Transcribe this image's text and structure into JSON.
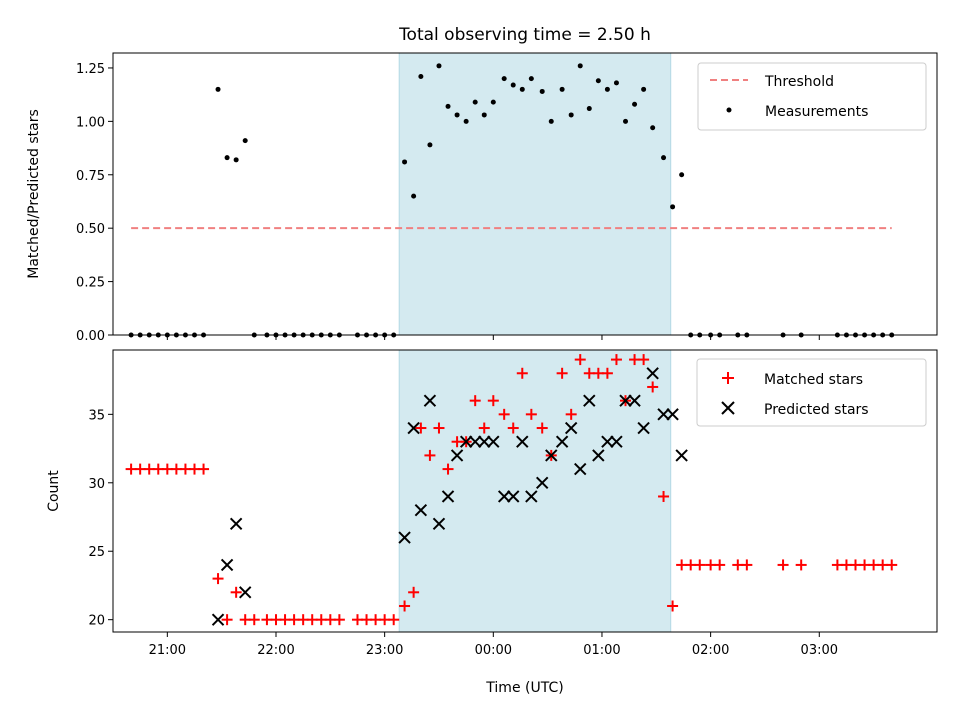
{
  "figure": {
    "title": "Total observing time = 2.50 h"
  },
  "chart_data": [
    {
      "type": "scatter",
      "ylabel": "Matched/Predicted stars",
      "xlabel": "",
      "xlim": [
        "20:30",
        "04:05"
      ],
      "ylim": [
        0,
        1.32
      ],
      "yticks": [
        "0.00",
        "0.25",
        "0.50",
        "0.75",
        "1.00",
        "1.25"
      ],
      "shaded_span": [
        "23:08",
        "01:38"
      ],
      "shade_color": "#d4eaf0",
      "legend_position": "top-right",
      "threshold": {
        "name": "Threshold",
        "y": 0.5,
        "x_range": [
          "20:40",
          "03:40"
        ],
        "color": "#f08080"
      },
      "series": [
        {
          "name": "Measurements",
          "color": "#000000",
          "points": [
            [
              "20:40",
              0
            ],
            [
              "20:45",
              0
            ],
            [
              "20:50",
              0
            ],
            [
              "20:55",
              0
            ],
            [
              "21:00",
              0
            ],
            [
              "21:05",
              0
            ],
            [
              "21:10",
              0
            ],
            [
              "21:15",
              0
            ],
            [
              "21:20",
              0
            ],
            [
              "21:28",
              1.15
            ],
            [
              "21:33",
              0.83
            ],
            [
              "21:38",
              0.82
            ],
            [
              "21:43",
              0.91
            ],
            [
              "21:48",
              0
            ],
            [
              "21:55",
              0
            ],
            [
              "22:00",
              0
            ],
            [
              "22:05",
              0
            ],
            [
              "22:10",
              0
            ],
            [
              "22:15",
              0
            ],
            [
              "22:20",
              0
            ],
            [
              "22:25",
              0
            ],
            [
              "22:30",
              0
            ],
            [
              "22:35",
              0
            ],
            [
              "22:45",
              0
            ],
            [
              "22:50",
              0
            ],
            [
              "22:55",
              0
            ],
            [
              "23:00",
              0
            ],
            [
              "23:05",
              0
            ],
            [
              "23:11",
              0.81
            ],
            [
              "23:16",
              0.65
            ],
            [
              "23:20",
              1.21
            ],
            [
              "23:25",
              0.89
            ],
            [
              "23:30",
              1.26
            ],
            [
              "23:35",
              1.07
            ],
            [
              "23:40",
              1.03
            ],
            [
              "23:45",
              1.0
            ],
            [
              "23:50",
              1.09
            ],
            [
              "23:55",
              1.03
            ],
            [
              "00:00",
              1.09
            ],
            [
              "00:06",
              1.2
            ],
            [
              "00:11",
              1.17
            ],
            [
              "00:16",
              1.15
            ],
            [
              "00:21",
              1.2
            ],
            [
              "00:27",
              1.14
            ],
            [
              "00:32",
              1.0
            ],
            [
              "00:38",
              1.15
            ],
            [
              "00:43",
              1.03
            ],
            [
              "00:48",
              1.26
            ],
            [
              "00:53",
              1.06
            ],
            [
              "00:58",
              1.19
            ],
            [
              "01:03",
              1.15
            ],
            [
              "01:08",
              1.18
            ],
            [
              "01:13",
              1.0
            ],
            [
              "01:18",
              1.08
            ],
            [
              "01:23",
              1.15
            ],
            [
              "01:28",
              0.97
            ],
            [
              "01:34",
              0.83
            ],
            [
              "01:39",
              0.6
            ],
            [
              "01:44",
              0.75
            ],
            [
              "01:49",
              0
            ],
            [
              "01:54",
              0
            ],
            [
              "02:00",
              0
            ],
            [
              "02:05",
              0
            ],
            [
              "02:15",
              0
            ],
            [
              "02:20",
              0
            ],
            [
              "02:40",
              0
            ],
            [
              "02:50",
              0
            ],
            [
              "03:10",
              0
            ],
            [
              "03:15",
              0
            ],
            [
              "03:20",
              0
            ],
            [
              "03:25",
              0
            ],
            [
              "03:30",
              0
            ],
            [
              "03:35",
              0
            ],
            [
              "03:40",
              0
            ]
          ]
        }
      ]
    },
    {
      "type": "scatter",
      "xlabel": "Time (UTC)",
      "ylabel": "Count",
      "xlim": [
        "20:30",
        "04:05"
      ],
      "ylim": [
        19.1,
        39.7
      ],
      "xticks": [
        "21:00",
        "22:00",
        "23:00",
        "00:00",
        "01:00",
        "02:00",
        "03:00"
      ],
      "yticks": [
        "20",
        "25",
        "30",
        "35"
      ],
      "shaded_span": [
        "23:08",
        "01:38"
      ],
      "legend_position": "top-right",
      "series": [
        {
          "name": "Matched stars",
          "marker": "plus",
          "color": "#ff0000",
          "points": [
            [
              "20:40",
              31
            ],
            [
              "20:45",
              31
            ],
            [
              "20:50",
              31
            ],
            [
              "20:55",
              31
            ],
            [
              "21:00",
              31
            ],
            [
              "21:05",
              31
            ],
            [
              "21:10",
              31
            ],
            [
              "21:15",
              31
            ],
            [
              "21:20",
              31
            ],
            [
              "21:28",
              23
            ],
            [
              "21:33",
              20
            ],
            [
              "21:38",
              22
            ],
            [
              "21:43",
              20
            ],
            [
              "21:48",
              20
            ],
            [
              "21:55",
              20
            ],
            [
              "22:00",
              20
            ],
            [
              "22:05",
              20
            ],
            [
              "22:10",
              20
            ],
            [
              "22:15",
              20
            ],
            [
              "22:20",
              20
            ],
            [
              "22:25",
              20
            ],
            [
              "22:30",
              20
            ],
            [
              "22:35",
              20
            ],
            [
              "22:45",
              20
            ],
            [
              "22:50",
              20
            ],
            [
              "22:55",
              20
            ],
            [
              "23:00",
              20
            ],
            [
              "23:05",
              20
            ],
            [
              "23:11",
              21
            ],
            [
              "23:16",
              22
            ],
            [
              "23:20",
              34
            ],
            [
              "23:25",
              32
            ],
            [
              "23:30",
              34
            ],
            [
              "23:35",
              31
            ],
            [
              "23:40",
              33
            ],
            [
              "23:45",
              33
            ],
            [
              "23:50",
              36
            ],
            [
              "23:55",
              34
            ],
            [
              "00:00",
              36
            ],
            [
              "00:06",
              35
            ],
            [
              "00:11",
              34
            ],
            [
              "00:16",
              38
            ],
            [
              "00:21",
              35
            ],
            [
              "00:27",
              34
            ],
            [
              "00:32",
              32
            ],
            [
              "00:38",
              38
            ],
            [
              "00:43",
              35
            ],
            [
              "00:48",
              39
            ],
            [
              "00:53",
              38
            ],
            [
              "00:58",
              38
            ],
            [
              "01:03",
              38
            ],
            [
              "01:08",
              39
            ],
            [
              "01:13",
              36
            ],
            [
              "01:18",
              39
            ],
            [
              "01:23",
              39
            ],
            [
              "01:28",
              37
            ],
            [
              "01:34",
              29
            ],
            [
              "01:39",
              21
            ],
            [
              "01:44",
              24
            ],
            [
              "01:49",
              24
            ],
            [
              "01:54",
              24
            ],
            [
              "02:00",
              24
            ],
            [
              "02:05",
              24
            ],
            [
              "02:15",
              24
            ],
            [
              "02:20",
              24
            ],
            [
              "02:40",
              24
            ],
            [
              "02:50",
              24
            ],
            [
              "03:10",
              24
            ],
            [
              "03:15",
              24
            ],
            [
              "03:20",
              24
            ],
            [
              "03:25",
              24
            ],
            [
              "03:30",
              24
            ],
            [
              "03:35",
              24
            ],
            [
              "03:40",
              24
            ]
          ]
        },
        {
          "name": "Predicted stars",
          "marker": "x",
          "color": "#000000",
          "points": [
            [
              "21:28",
              20
            ],
            [
              "21:33",
              24
            ],
            [
              "21:38",
              27
            ],
            [
              "21:43",
              22
            ],
            [
              "23:11",
              26
            ],
            [
              "23:16",
              34
            ],
            [
              "23:20",
              28
            ],
            [
              "23:25",
              36
            ],
            [
              "23:30",
              27
            ],
            [
              "23:35",
              29
            ],
            [
              "23:40",
              32
            ],
            [
              "23:45",
              33
            ],
            [
              "23:50",
              33
            ],
            [
              "23:55",
              33
            ],
            [
              "00:00",
              33
            ],
            [
              "00:06",
              29
            ],
            [
              "00:11",
              29
            ],
            [
              "00:16",
              33
            ],
            [
              "00:21",
              29
            ],
            [
              "00:27",
              30
            ],
            [
              "00:32",
              32
            ],
            [
              "00:38",
              33
            ],
            [
              "00:43",
              34
            ],
            [
              "00:48",
              31
            ],
            [
              "00:53",
              36
            ],
            [
              "00:58",
              32
            ],
            [
              "01:03",
              33
            ],
            [
              "01:08",
              33
            ],
            [
              "01:13",
              36
            ],
            [
              "01:18",
              36
            ],
            [
              "01:23",
              34
            ],
            [
              "01:28",
              38
            ],
            [
              "01:34",
              35
            ],
            [
              "01:39",
              35
            ],
            [
              "01:44",
              32
            ]
          ]
        }
      ]
    }
  ]
}
